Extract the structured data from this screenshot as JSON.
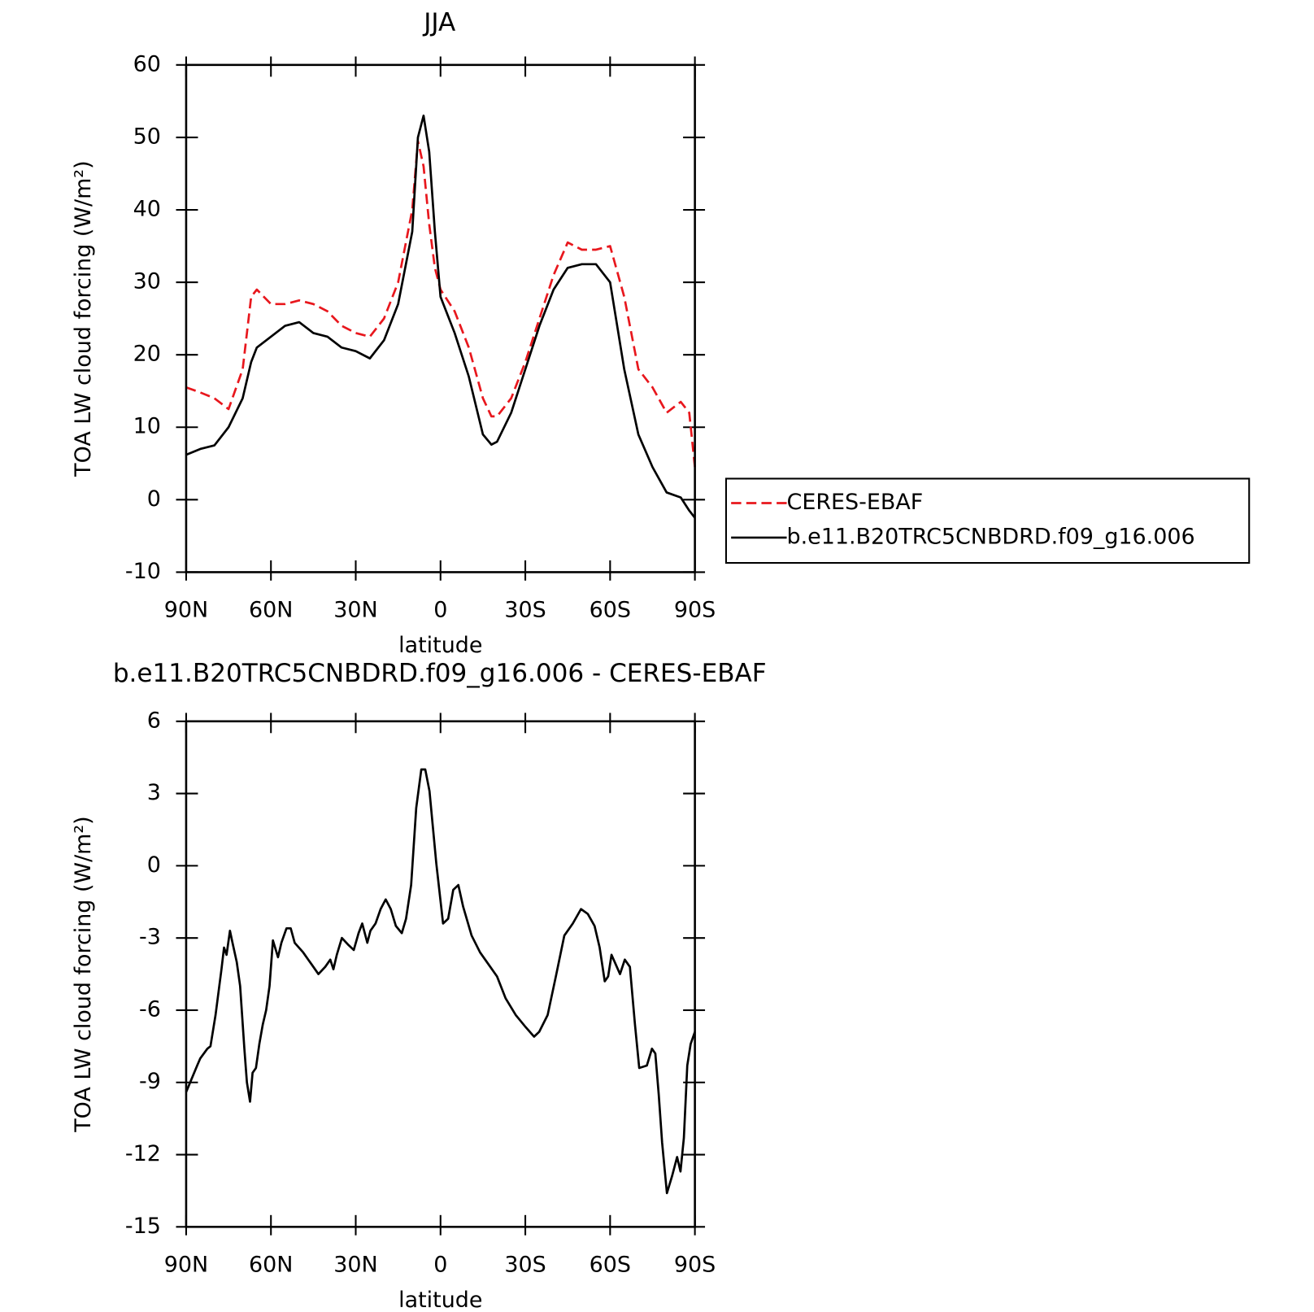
{
  "chart_data": [
    {
      "type": "line",
      "title": "JJA",
      "xlabel": "latitude",
      "ylabel": "TOA LW cloud forcing (W/m²)",
      "xlim": [
        90,
        -90
      ],
      "ylim": [
        -10,
        60
      ],
      "xticks": [
        {
          "value": 90,
          "label": "90N"
        },
        {
          "value": 60,
          "label": "60N"
        },
        {
          "value": 30,
          "label": "30N"
        },
        0,
        {
          "value": -30,
          "label": "30S"
        },
        {
          "value": -60,
          "label": "60S"
        },
        {
          "value": -90,
          "label": "90S"
        }
      ],
      "yticks": [
        -10,
        0,
        10,
        20,
        30,
        40,
        50,
        60
      ],
      "legend": "right",
      "x": [
        90,
        85,
        80,
        75,
        70,
        67,
        65,
        60,
        55,
        50,
        45,
        40,
        35,
        30,
        25,
        20,
        15,
        10,
        8,
        6,
        4,
        2,
        0,
        -5,
        -10,
        -15,
        -18,
        -20,
        -25,
        -30,
        -35,
        -40,
        -45,
        -50,
        -55,
        -60,
        -65,
        -70,
        -75,
        -80,
        -85,
        -88,
        -90
      ],
      "series": [
        {
          "name": "CERES-EBAF",
          "color": "#e8171d",
          "linestyle": "dashed",
          "values": [
            15.5,
            14.8,
            14,
            12.5,
            18,
            28,
            29,
            27,
            27,
            27.5,
            27,
            26,
            24,
            23,
            22.5,
            25,
            30,
            40,
            49.5,
            46,
            38,
            32,
            29,
            26,
            21,
            14,
            11.5,
            11.5,
            14,
            19,
            25,
            31,
            35.5,
            34.5,
            34.5,
            35,
            28,
            18,
            15.5,
            12,
            13.5,
            12,
            4.5
          ]
        },
        {
          "name": "b.e11.B20TRC5CNBDRD.f09_g16.006",
          "color": "#000000",
          "linestyle": "solid",
          "values": [
            6.2,
            7,
            7.5,
            10,
            14,
            19,
            21,
            22.5,
            24,
            24.5,
            23,
            22.5,
            21,
            20.5,
            19.5,
            22,
            27,
            37,
            50,
            53,
            48,
            37,
            28,
            23,
            17,
            9,
            7.6,
            8,
            12,
            18,
            24,
            29,
            32,
            32.5,
            32.5,
            30,
            18,
            9,
            4.5,
            1,
            0.3,
            -1.5,
            -2.5
          ]
        }
      ]
    },
    {
      "type": "line",
      "title": "b.e11.B20TRC5CNBDRD.f09_g16.006 - CERES-EBAF",
      "xlabel": "latitude",
      "ylabel": "TOA LW cloud forcing (W/m²)",
      "xlim": [
        90,
        -90
      ],
      "ylim": [
        -15,
        6
      ],
      "xticks": [
        {
          "value": 90,
          "label": "90N"
        },
        {
          "value": 60,
          "label": "60N"
        },
        {
          "value": 30,
          "label": "30N"
        },
        0,
        {
          "value": -30,
          "label": "30S"
        },
        {
          "value": -60,
          "label": "60S"
        },
        {
          "value": -90,
          "label": "90S"
        }
      ],
      "yticks": [
        -15,
        -12,
        -9,
        -6,
        -3,
        0,
        3,
        6
      ],
      "x": [
        90,
        86.1,
        85,
        82.5,
        81.4,
        79.6,
        77.5,
        76.6,
        75.7,
        74.5,
        73.6,
        72.1,
        70.9,
        69.4,
        68.5,
        67.4,
        66.5,
        65.3,
        64.1,
        62.9,
        61.7,
        60.5,
        59.3,
        57.5,
        56.3,
        54.5,
        53,
        51.6,
        48.6,
        45.6,
        43.2,
        40.8,
        39,
        37.9,
        36.7,
        34.9,
        32.5,
        30.7,
        29,
        27.7,
        25.9,
        24.8,
        23,
        21.2,
        19.4,
        17.6,
        15.8,
        13.7,
        12.2,
        10.4,
        8.6,
        6.8,
        5.4,
        3.9,
        1.5,
        -0.9,
        -2.7,
        -4.5,
        -6.3,
        -8,
        -11,
        -14,
        -17,
        -20,
        -23,
        -26.6,
        -30.1,
        -33.1,
        -34.9,
        -37.9,
        -40.8,
        -43.8,
        -46.8,
        -49.7,
        -52.1,
        -54.5,
        -56.3,
        -58.1,
        -59.3,
        -60.5,
        -62,
        -63.5,
        -65.2,
        -67,
        -68.8,
        -70.3,
        -73,
        -74.8,
        -76,
        -77.2,
        -78.4,
        -80.1,
        -81.9,
        -83.7,
        -84.9,
        -86.1,
        -87.3,
        -88.5,
        -90
      ],
      "series": [
        {
          "color": "#000000",
          "linestyle": "solid",
          "values": [
            -9.4,
            -8.3,
            -8,
            -7.6,
            -7.5,
            -6.2,
            -4.3,
            -3.4,
            -3.7,
            -2.7,
            -3.2,
            -4,
            -5,
            -7.6,
            -9,
            -9.8,
            -8.6,
            -8.4,
            -7.4,
            -6.6,
            -6,
            -5,
            -3.1,
            -3.8,
            -3.2,
            -2.6,
            -2.6,
            -3.2,
            -3.6,
            -4.1,
            -4.5,
            -4.2,
            -3.9,
            -4.3,
            -3.7,
            -3,
            -3.3,
            -3.5,
            -2.8,
            -2.4,
            -3.2,
            -2.7,
            -2.4,
            -1.8,
            -1.4,
            -1.8,
            -2.5,
            -2.8,
            -2.2,
            -0.8,
            2.4,
            4,
            4,
            3.1,
            0.1,
            -2.4,
            -2.2,
            -1,
            -0.8,
            -1.7,
            -2.9,
            -3.6,
            -4.1,
            -4.6,
            -5.5,
            -6.2,
            -6.7,
            -7.1,
            -6.9,
            -6.2,
            -4.6,
            -2.9,
            -2.4,
            -1.8,
            -2,
            -2.5,
            -3.4,
            -4.8,
            -4.6,
            -3.7,
            -4.1,
            -4.5,
            -3.9,
            -4.2,
            -6.6,
            -8.4,
            -8.3,
            -7.6,
            -7.8,
            -9.5,
            -11.5,
            -13.6,
            -12.9,
            -12.1,
            -12.7,
            -11.3,
            -8.3,
            -7.4,
            -6.9
          ]
        }
      ]
    }
  ]
}
